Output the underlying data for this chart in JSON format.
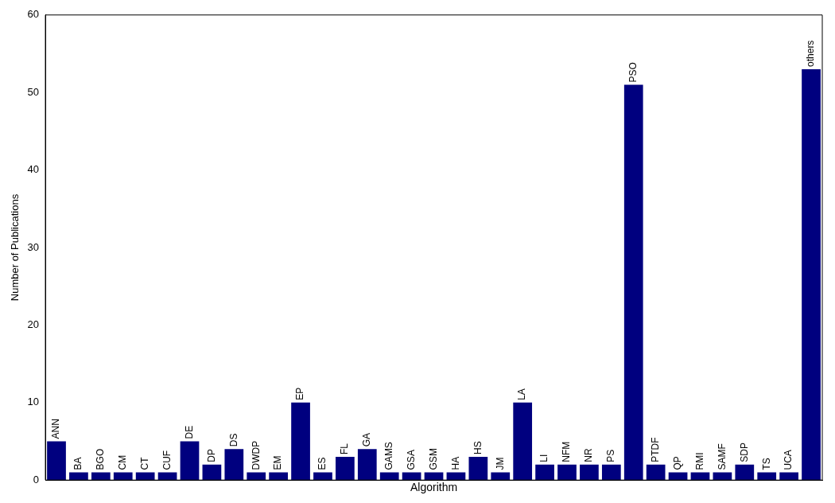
{
  "chart_data": {
    "type": "bar",
    "xlabel": "Algorithm",
    "ylabel": "Number of Publications",
    "categories": [
      "ANN",
      "BA",
      "BGO",
      "CM",
      "CT",
      "CUF",
      "DE",
      "DP",
      "DS",
      "DWDP",
      "EM",
      "EP",
      "ES",
      "FL",
      "GA",
      "GAMS",
      "GSA",
      "GSM",
      "HA",
      "HS",
      "JM",
      "LA",
      "LI",
      "NFM",
      "NR",
      "PS",
      "PSO",
      "PTDF",
      "QP",
      "RMI",
      "SAMF",
      "SDP",
      "TS",
      "UCA",
      "others"
    ],
    "values": [
      5,
      1,
      1,
      1,
      1,
      1,
      5,
      2,
      4,
      1,
      1,
      10,
      1,
      3,
      4,
      1,
      1,
      1,
      1,
      3,
      1,
      10,
      2,
      2,
      2,
      2,
      51,
      2,
      1,
      1,
      1,
      2,
      1,
      1,
      53
    ],
    "color": "#00007f",
    "ylim": [
      0,
      60
    ],
    "yticks": [
      0,
      10,
      20,
      30,
      40,
      50,
      60
    ],
    "grid": false,
    "legend": false,
    "tick_labels": "y"
  }
}
